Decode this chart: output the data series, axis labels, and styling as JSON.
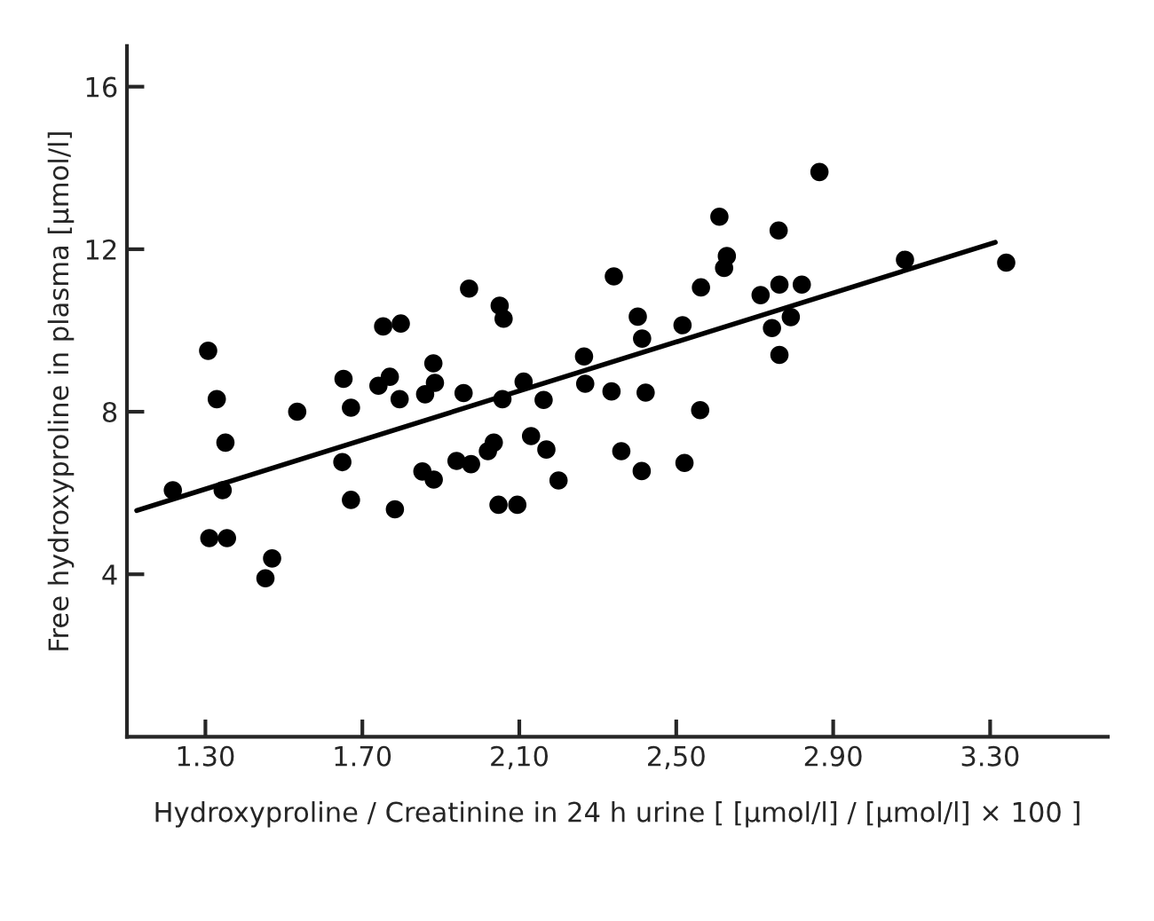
{
  "chart_data": {
    "type": "scatter",
    "xlabel": "Hydroxyproline / Creatinine in 24 h urine [ [μmol/l] / [μmol/l] × 100 ]",
    "ylabel": "Free hydroxyproline in plasma [μmol/l]",
    "xlim": [
      1.1,
      3.6
    ],
    "ylim": [
      0,
      17
    ],
    "xticks": [
      {
        "value": 1.3,
        "label": "1.30"
      },
      {
        "value": 1.7,
        "label": "1.70"
      },
      {
        "value": 2.1,
        "label": "2,10"
      },
      {
        "value": 2.5,
        "label": "2,50"
      },
      {
        "value": 2.9,
        "label": "2.90"
      },
      {
        "value": 3.3,
        "label": "3.30"
      }
    ],
    "yticks": [
      4,
      8,
      12,
      16
    ],
    "grid": false,
    "legend": false,
    "marker": "circle",
    "series": [
      {
        "color": "#000000",
        "x": [
          1.217,
          1.307,
          1.329,
          1.351,
          1.344,
          1.31,
          1.355,
          1.453,
          1.47,
          1.534,
          1.652,
          1.649,
          1.671,
          1.671,
          1.753,
          1.798,
          1.741,
          1.77,
          1.795,
          1.783,
          1.86,
          1.885,
          1.881,
          1.853,
          1.882,
          1.958,
          1.94,
          1.977,
          1.972,
          2.02,
          2.035,
          2.05,
          2.06,
          2.057,
          2.047,
          2.095,
          2.111,
          2.13,
          2.162,
          2.169,
          2.2,
          2.265,
          2.268,
          2.335,
          2.341,
          2.36,
          2.402,
          2.413,
          2.422,
          2.412,
          2.516,
          2.521,
          2.561,
          2.563,
          2.61,
          2.622,
          2.629,
          2.715,
          2.761,
          2.763,
          2.744,
          2.763,
          2.792,
          2.82,
          2.865,
          3.083,
          3.341
        ],
        "values": [
          6.07,
          9.5,
          8.31,
          7.24,
          6.07,
          4.89,
          4.89,
          3.9,
          4.39,
          8.0,
          8.81,
          6.76,
          8.1,
          5.83,
          10.1,
          10.17,
          8.64,
          8.86,
          8.31,
          5.6,
          8.43,
          8.71,
          9.19,
          6.53,
          6.33,
          8.46,
          6.79,
          6.71,
          11.03,
          7.03,
          7.24,
          10.61,
          10.29,
          8.31,
          5.71,
          5.71,
          8.74,
          7.4,
          8.29,
          7.07,
          6.31,
          9.36,
          8.69,
          8.5,
          11.33,
          7.03,
          10.34,
          9.8,
          8.47,
          6.54,
          10.13,
          6.74,
          8.04,
          11.06,
          12.8,
          11.54,
          11.83,
          10.87,
          12.46,
          11.13,
          10.06,
          9.4,
          10.33,
          11.13,
          13.9,
          11.74,
          11.67
        ]
      },
      {
        "type": "line",
        "color": "#000000",
        "marker": "none",
        "line_style": "solid",
        "x": [
          1.125,
          3.313
        ],
        "values": [
          5.57,
          12.17
        ]
      }
    ]
  }
}
